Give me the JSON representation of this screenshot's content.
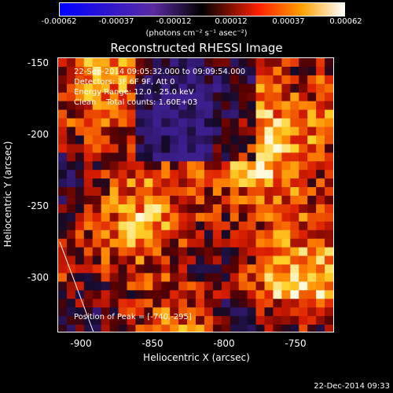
{
  "colorbar": {
    "ticks": [
      "-0.00062",
      "-0.00037",
      "-0.00012",
      "0.00012",
      "0.00037",
      "0.00062"
    ],
    "units": "(photons cm⁻² s⁻¹ asec⁻²)"
  },
  "title": "Reconstructed RHESSI Image",
  "info": {
    "line1": "22-Sep-2014 09:05:32.000 to 09:09:54.000",
    "line2": "Detectors: 3F 6F 9F, Att 0",
    "line3": "Energy Range: 12.0 - 25.0 keV",
    "line4": "Clean    Total counts: 1.60E+03"
  },
  "peak_text": "Position of Peak = [-740,-295]",
  "axes": {
    "xlabel": "Heliocentric X (arcsec)",
    "ylabel": "Heliocentric Y (arcsec)",
    "xticks": [
      "-900",
      "-850",
      "-800",
      "-750"
    ],
    "yticks": [
      "-150",
      "-200",
      "-250",
      "-300"
    ]
  },
  "footer": "22-Dec-2014 09:33",
  "chart_data": {
    "type": "heatmap",
    "title": "Reconstructed RHESSI Image",
    "xlabel": "Heliocentric X (arcsec)",
    "ylabel": "Heliocentric Y (arcsec)",
    "xlim": [
      -917,
      -727
    ],
    "ylim": [
      -337,
      -145
    ],
    "peak": [
      -740,
      -295
    ],
    "color_range": [
      -0.00062,
      0.00062
    ]
  }
}
